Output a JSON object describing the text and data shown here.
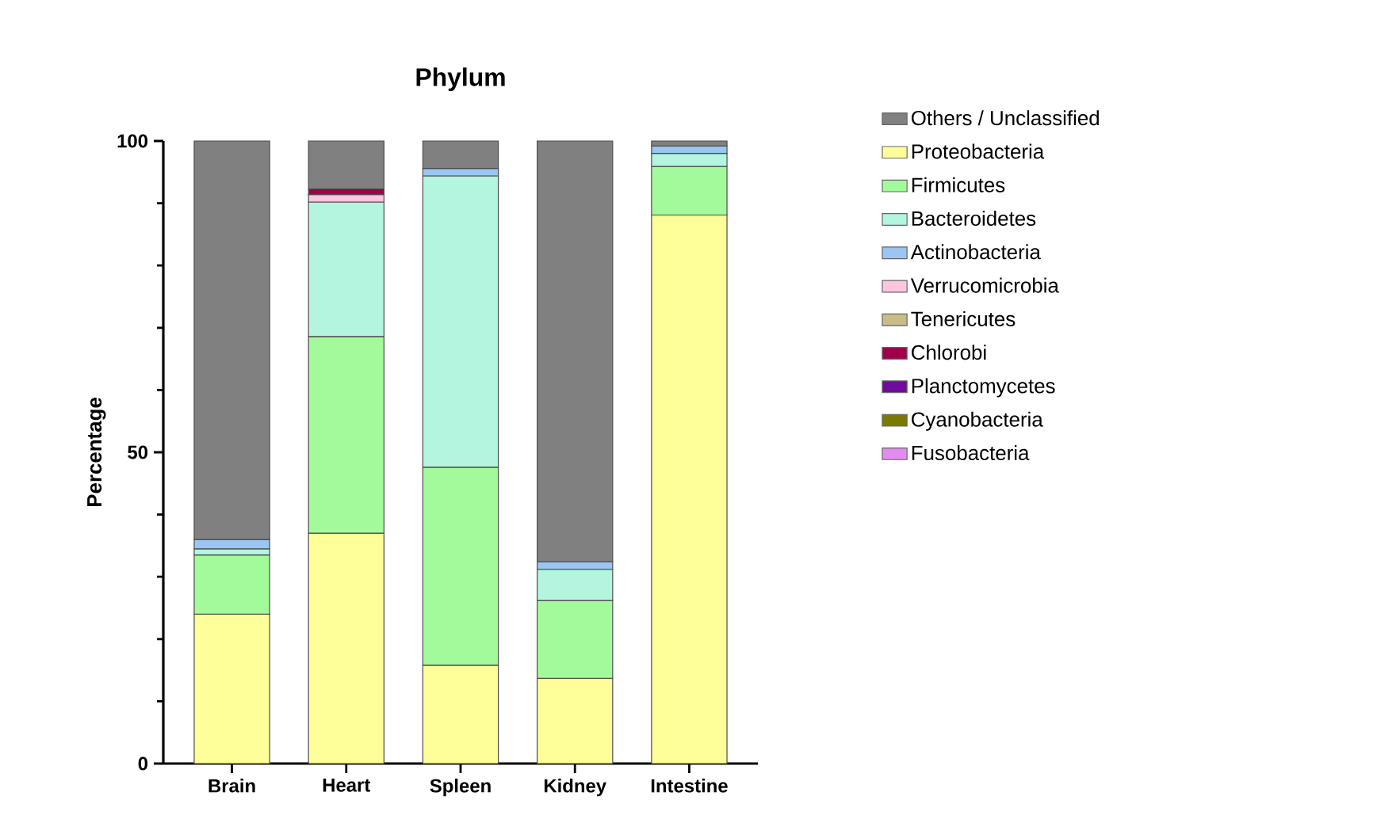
{
  "chart_data": {
    "type": "bar",
    "stacked": true,
    "title": "Phylum",
    "ylabel": "Percentage",
    "categories": [
      "Brain",
      "Heart",
      "Spleen",
      "Kidney",
      "Intestine"
    ],
    "ylim": [
      0,
      100
    ],
    "yticks": [
      0,
      50,
      100
    ],
    "legend": "right",
    "series": [
      {
        "name": "Proteobacteria",
        "color": "#ffff99",
        "values": [
          24,
          37,
          15.8,
          13.7,
          88.1
        ]
      },
      {
        "name": "Firmicutes",
        "color": "#a3fa9a",
        "values": [
          9.5,
          31.6,
          31.8,
          12.5,
          7.8
        ]
      },
      {
        "name": "Bacteroidetes",
        "color": "#b3f5df",
        "values": [
          1,
          21.6,
          46.8,
          5,
          2.1
        ]
      },
      {
        "name": "Actinobacteria",
        "color": "#99c6f2",
        "values": [
          1.5,
          null,
          1.2,
          1.2,
          1.2
        ]
      },
      {
        "name": "Verrucomicrobia",
        "color": "#ffc4df",
        "values": [
          null,
          1.2,
          null,
          null,
          null
        ]
      },
      {
        "name": "Tenericutes",
        "color": "#c8bd86",
        "values": [
          null,
          null,
          null,
          null,
          null
        ]
      },
      {
        "name": "Chlorobi",
        "color": "#a0004a",
        "values": [
          null,
          0.9,
          null,
          null,
          null
        ]
      },
      {
        "name": "Planctomycetes",
        "color": "#6e0a9e",
        "values": [
          null,
          null,
          null,
          null,
          null
        ]
      },
      {
        "name": "Cyanobacteria",
        "color": "#7a7a00",
        "values": [
          null,
          null,
          null,
          null,
          null
        ]
      },
      {
        "name": "Fusobacteria",
        "color": "#e38cf0",
        "values": [
          null,
          null,
          null,
          null,
          null
        ]
      },
      {
        "name": "Others / Unclassified",
        "color": "#808080",
        "values": [
          64,
          7.7,
          4.4,
          67.6,
          0.8
        ]
      }
    ]
  }
}
